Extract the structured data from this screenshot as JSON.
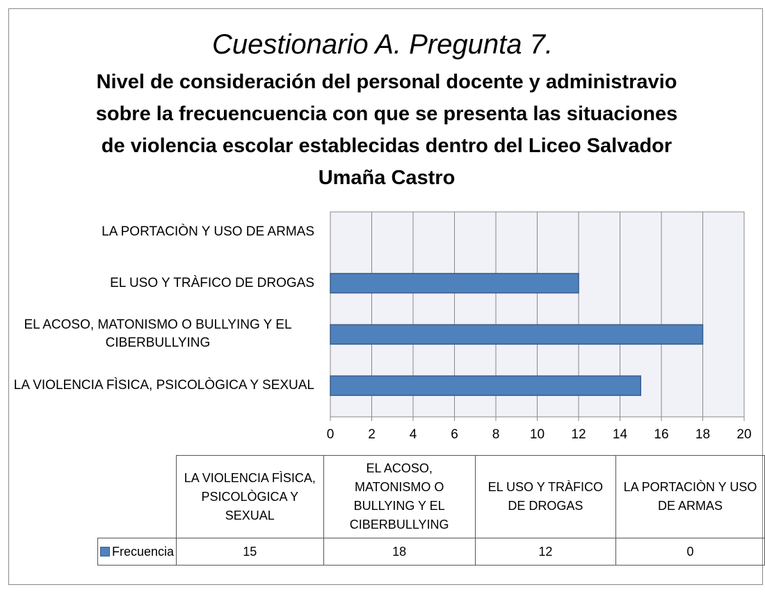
{
  "chart_data": {
    "type": "barh",
    "title": "Cuestionario A. Pregunta 7.",
    "subtitle": "Nivel de consideración del personal docente y administravio sobre la frecuencuencia con que se presenta las situaciones de violencia escolar establecidas dentro del Liceo Salvador Umaña Castro",
    "categories": [
      "LA VIOLENCIA FÌSICA, PSICOLÒGICA Y SEXUAL",
      "EL ACOSO, MATONISMO O BULLYING Y EL CIBERBULLYING",
      "EL USO Y TRÀFICO DE DROGAS",
      "LA PORTACIÒN Y USO DE ARMAS"
    ],
    "series": [
      {
        "name": "Frecuencia",
        "color": "#4f81bd",
        "values": [
          15,
          18,
          12,
          0
        ]
      }
    ],
    "xlim": [
      0,
      20
    ],
    "xticks": [
      0,
      2,
      4,
      6,
      8,
      10,
      12,
      14,
      16,
      18,
      20
    ],
    "grid": true,
    "data_table": true
  }
}
